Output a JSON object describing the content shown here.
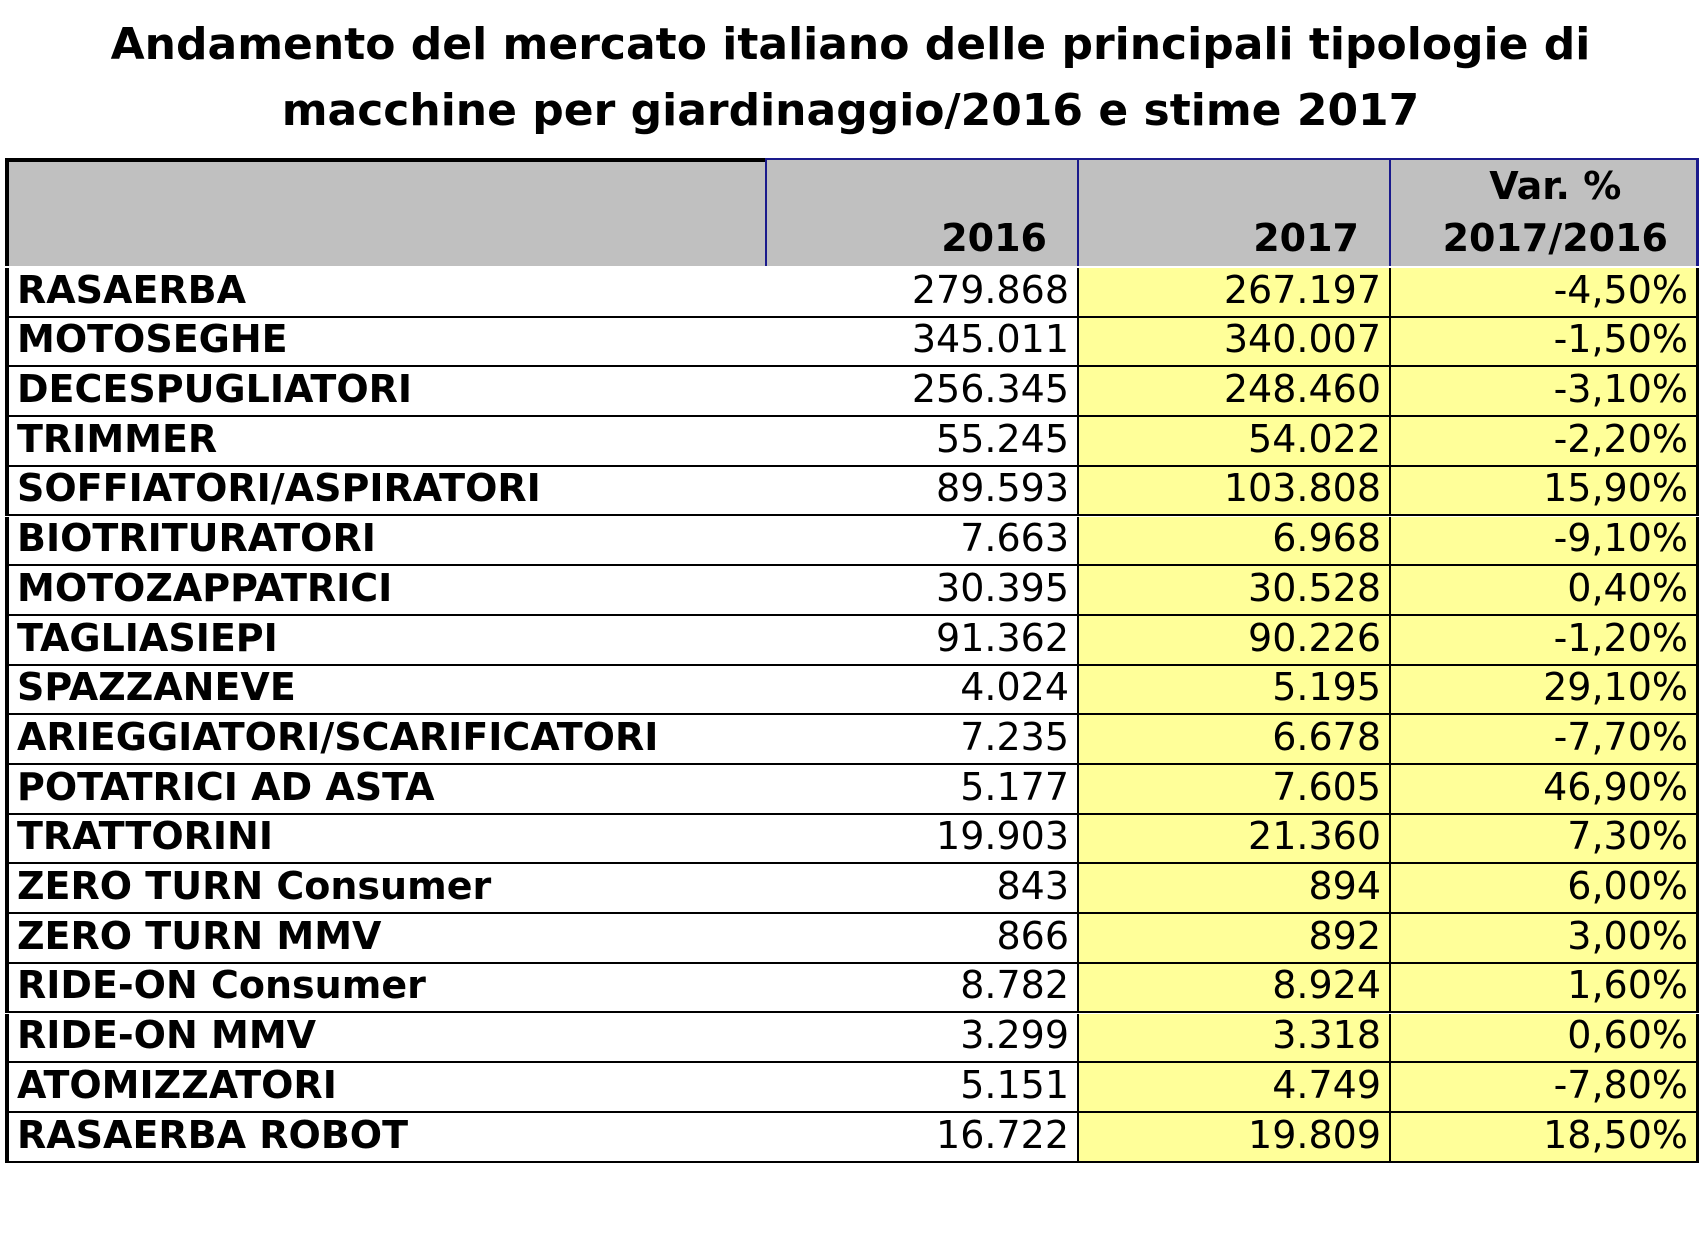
{
  "chart_data": {
    "type": "table",
    "title": "Andamento del mercato italiano delle principali tipologie di macchine per giardinaggio/2016 e stime 2017",
    "title_lines": [
      "Andamento del mercato italiano delle principali tipologie di",
      "macchine per giardinaggio/2016 e stime 2017"
    ],
    "columns": [
      "",
      "2016",
      "2017",
      "Var. % 2017/2016"
    ],
    "header_lines": {
      "col1": "2016",
      "col2": "2017",
      "col3_line1": "Var. %",
      "col3_line2": "2017/2016"
    },
    "rows": [
      {
        "label": "RASAERBA",
        "v2016": "279.868",
        "v2017": "267.197",
        "var": "-4,50%"
      },
      {
        "label": "MOTOSEGHE",
        "v2016": "345.011",
        "v2017": "340.007",
        "var": "-1,50%"
      },
      {
        "label": "DECESPUGLIATORI",
        "v2016": "256.345",
        "v2017": "248.460",
        "var": "-3,10%"
      },
      {
        "label": "TRIMMER",
        "v2016": "55.245",
        "v2017": "54.022",
        "var": "-2,20%"
      },
      {
        "label": "SOFFIATORI/ASPIRATORI",
        "v2016": "89.593",
        "v2017": "103.808",
        "var": "15,90%"
      },
      {
        "label": "BIOTRITURATORI",
        "v2016": "7.663",
        "v2017": "6.968",
        "var": "-9,10%"
      },
      {
        "label": "MOTOZAPPATRICI",
        "v2016": "30.395",
        "v2017": "30.528",
        "var": "0,40%"
      },
      {
        "label": "TAGLIASIEPI",
        "v2016": "91.362",
        "v2017": "90.226",
        "var": "-1,20%"
      },
      {
        "label": "SPAZZANEVE",
        "v2016": "4.024",
        "v2017": "5.195",
        "var": "29,10%"
      },
      {
        "label": "ARIEGGIATORI/SCARIFICATORI",
        "v2016": "7.235",
        "v2017": "6.678",
        "var": "-7,70%"
      },
      {
        "label": "POTATRICI AD ASTA",
        "v2016": "5.177",
        "v2017": "7.605",
        "var": "46,90%"
      },
      {
        "label": "TRATTORINI",
        "v2016": "19.903",
        "v2017": "21.360",
        "var": "7,30%"
      },
      {
        "label": "ZERO TURN Consumer",
        "v2016": "843",
        "v2017": "894",
        "var": "6,00%"
      },
      {
        "label": "ZERO TURN MMV",
        "v2016": "866",
        "v2017": "892",
        "var": "3,00%"
      },
      {
        "label": "RIDE-ON Consumer",
        "v2016": "8.782",
        "v2017": "8.924",
        "var": "1,60%"
      },
      {
        "label": "RIDE-ON MMV",
        "v2016": "3.299",
        "v2017": "3.318",
        "var": "0,60%"
      },
      {
        "label": "ATOMIZZATORI",
        "v2016": "5.151",
        "v2017": "4.749",
        "var": "-7,80%"
      },
      {
        "label": "RASAERBA ROBOT",
        "v2016": "16.722",
        "v2017": "19.809",
        "var": "18,50%"
      }
    ],
    "colors": {
      "header_bg": "#c0c0c0",
      "estimate_bg": "#ffff99",
      "header_border": "#1a1a8c"
    }
  }
}
